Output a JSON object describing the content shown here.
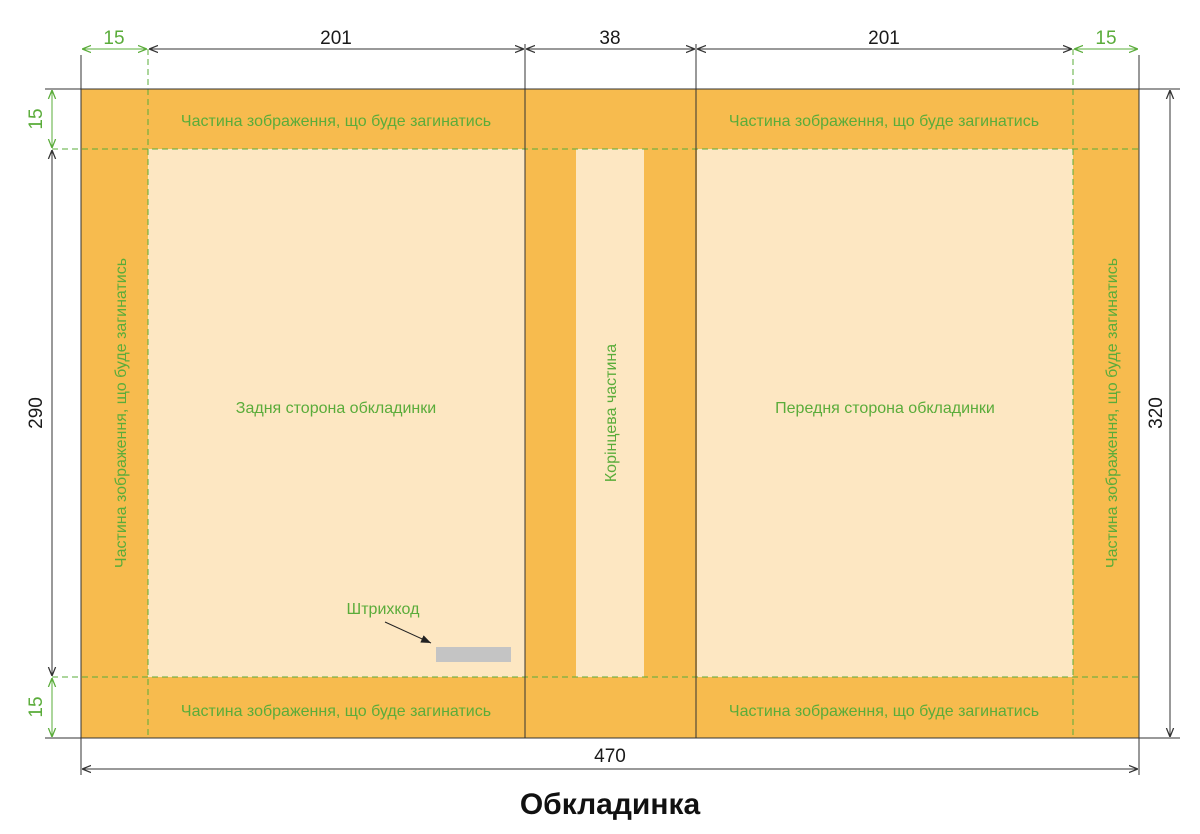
{
  "title": "Обкладинка",
  "colors": {
    "fold_area": "#f7bb4e",
    "content_area": "#fde7c2",
    "label_green": "#5aac3a",
    "barcode": "#c4c4c4",
    "line_dark": "#333333"
  },
  "dimensions": {
    "fold_left": "15",
    "back_width": "201",
    "spine_width": "38",
    "front_width": "201",
    "fold_right": "15",
    "fold_top": "15",
    "content_height": "290",
    "fold_bottom": "15",
    "total_height": "320",
    "total_width": "470"
  },
  "labels": {
    "fold_top_left": "Частина зображення, що буде загинатись",
    "fold_top_right": "Частина зображення, що буде загинатись",
    "fold_bottom_left": "Частина зображення, що буде загинатись",
    "fold_bottom_right": "Частина зображення, що буде загинатись",
    "fold_left": "Частина зображення, що буде загинатись",
    "fold_right": "Частина зображення, що буде загинатись",
    "back_cover": "Задня сторона обкладинки",
    "front_cover": "Передня сторона обкладинки",
    "spine": "Корінцева частина",
    "barcode": "Штрихкод"
  }
}
